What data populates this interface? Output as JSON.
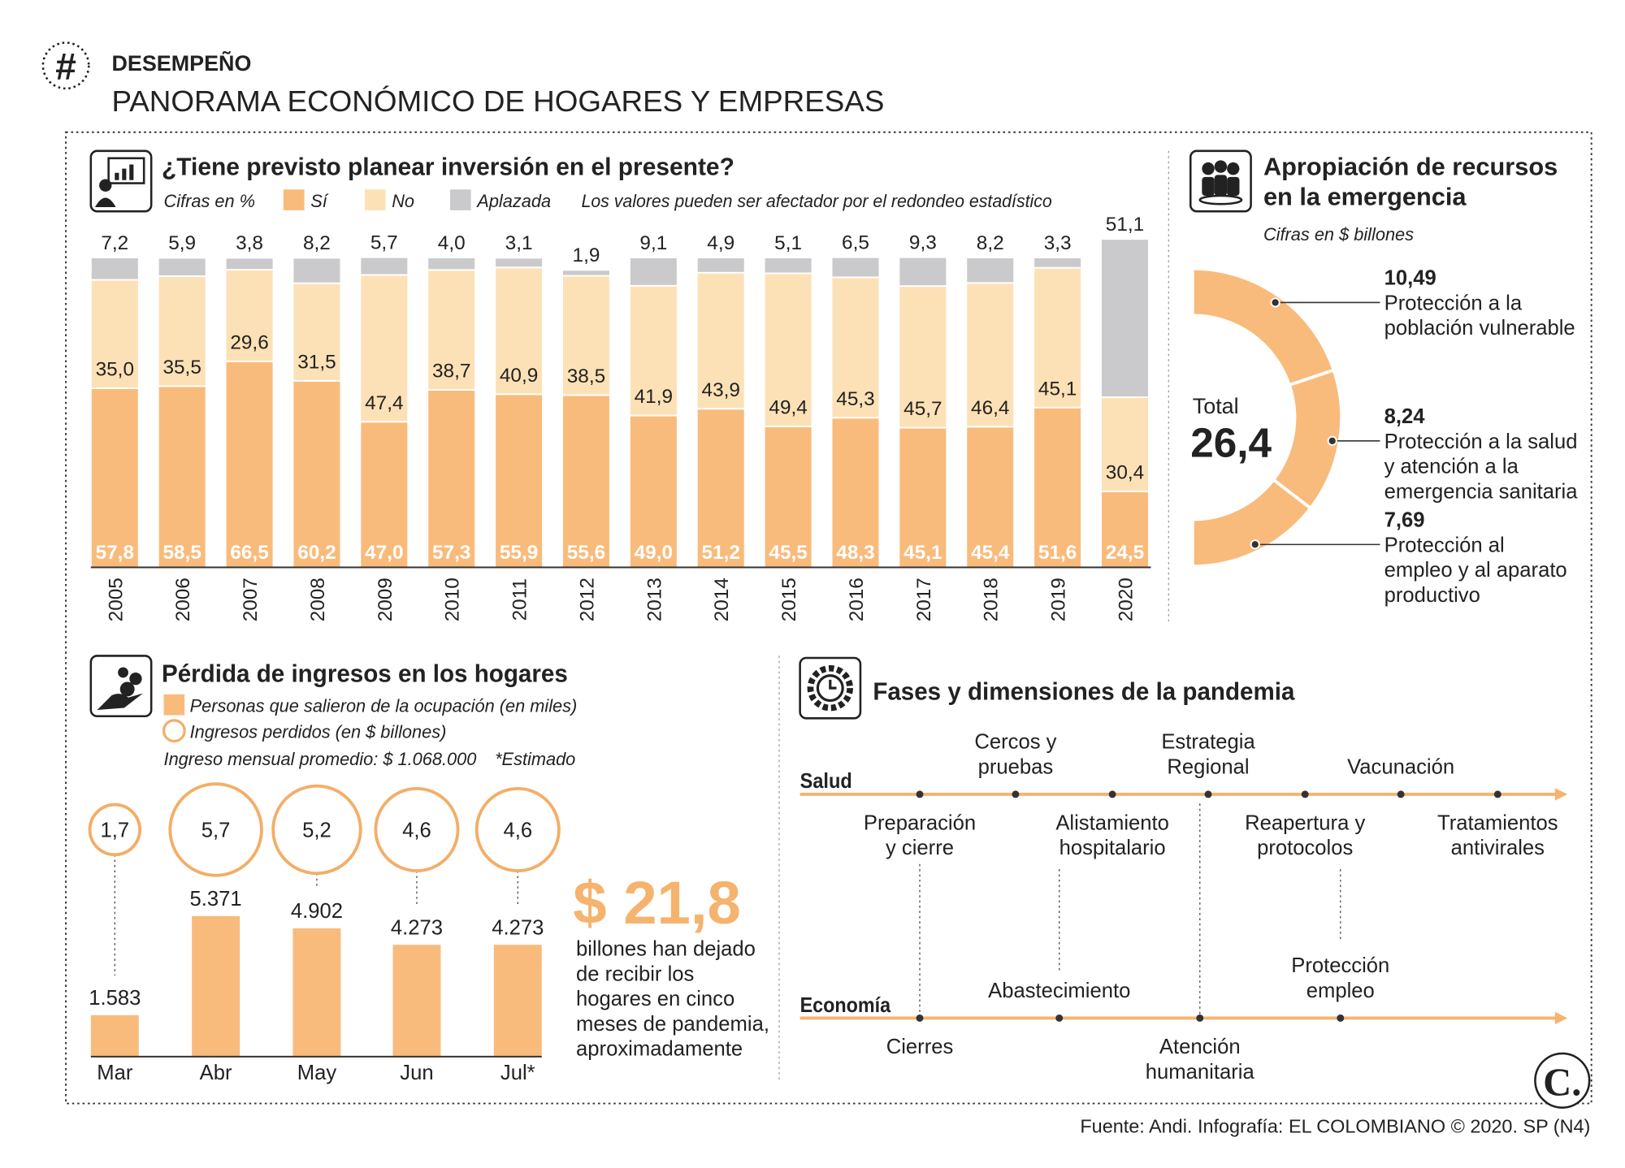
{
  "header": {
    "tag": "DESEMPEÑO",
    "title": "PANORAMA ECONÓMICO DE HOGARES Y EMPRESAS"
  },
  "chart_data": [
    {
      "type": "stacked_bar",
      "title": "¿Tiene previsto planear inversión en el presente?",
      "unit_note": "Cifras en %",
      "note": "Los valores pueden ser afectador por el redondeo estadístico",
      "categories": [
        "2005",
        "2006",
        "2007",
        "2008",
        "2009",
        "2010",
        "2011",
        "2012",
        "2013",
        "2014",
        "2015",
        "2016",
        "2017",
        "2018",
        "2019",
        "2020"
      ],
      "series": [
        {
          "name": "Sí",
          "color": "#f9bb7b",
          "values": [
            57.8,
            58.5,
            66.5,
            60.2,
            47.0,
            57.3,
            55.9,
            55.6,
            49.0,
            51.2,
            45.5,
            48.3,
            45.1,
            45.4,
            51.6,
            24.5
          ],
          "value_labels": [
            "57,8",
            "58,5",
            "66,5",
            "60,2",
            "47,0",
            "57,3",
            "55,9",
            "55,6",
            "49,0",
            "51,2",
            "45,5",
            "48,3",
            "45,1",
            "45,4",
            "51,6",
            "24,5"
          ]
        },
        {
          "name": "No",
          "color": "#fde1b6",
          "values": [
            35.0,
            35.5,
            29.6,
            31.5,
            47.4,
            38.7,
            40.9,
            38.5,
            41.9,
            43.9,
            49.4,
            45.3,
            45.7,
            46.4,
            45.1,
            30.4
          ],
          "value_labels": [
            "35,0",
            "35,5",
            "29,6",
            "31,5",
            "47,4",
            "38,7",
            "40,9",
            "38,5",
            "41,9",
            "43,9",
            "49,4",
            "45,3",
            "45,7",
            "46,4",
            "45,1",
            "30,4"
          ]
        },
        {
          "name": "Aplazada",
          "color": "#cacacc",
          "values": [
            7.2,
            5.9,
            3.8,
            8.2,
            5.7,
            4.0,
            3.1,
            1.9,
            9.1,
            4.9,
            5.1,
            6.5,
            9.3,
            8.2,
            3.3,
            51.1
          ],
          "value_labels": [
            "7,2",
            "5,9",
            "3,8",
            "8,2",
            "5,7",
            "4,0",
            "3,1",
            "1,9",
            "9,1",
            "4,9",
            "5,1",
            "6,5",
            "9,3",
            "8,2",
            "3,3",
            "51,1"
          ]
        }
      ]
    },
    {
      "type": "semi_donut",
      "title_lines": [
        "Apropiación de recursos",
        "en la emergencia"
      ],
      "subtitle": "Cifras en $ billones",
      "total_caption": "Total",
      "total": "26,4",
      "color": "#f9bb7b",
      "categories": [
        [
          "Protección a la",
          "población vulnerable"
        ],
        [
          "Protección a la salud",
          "y atención a la",
          "emergencia sanitaria"
        ],
        [
          "Protección al",
          "empleo y al aparato",
          "productivo"
        ]
      ],
      "values": [
        10.49,
        8.24,
        7.69
      ],
      "value_labels": [
        "10,49",
        "8,24",
        "7,69"
      ]
    },
    {
      "type": "bar_bubble",
      "title": "Pérdida de ingresos en los hogares",
      "note": "Ingreso mensual promedio: $ 1.068.000",
      "note2": "*Estimado",
      "categories": [
        "Mar",
        "Abr",
        "May",
        "Jun",
        "Jul*"
      ],
      "series": [
        {
          "name": "Personas que salieron de la ocupación (en miles)",
          "color": "#f9bb7b",
          "values": [
            1583,
            5371,
            4902,
            4273,
            4273
          ],
          "value_labels": [
            "1.583",
            "5.371",
            "4.902",
            "4.273",
            "4.273"
          ]
        },
        {
          "name": "Ingresos perdidos (en $ billones)",
          "color": "#f3ae68",
          "values": [
            1.7,
            5.7,
            5.2,
            4.6,
            4.6
          ],
          "value_labels": [
            "1,7",
            "5,7",
            "5,2",
            "4,6",
            "4,6"
          ]
        }
      ],
      "highlight": "$ 21,8",
      "highlight_text": [
        "billones han dejado",
        "de recibir los",
        "hogares en cinco",
        "meses de pandemia,",
        "aproximadamente"
      ]
    }
  ],
  "timeline": {
    "title": "Fases y dimensiones de la pandemia",
    "rows": [
      {
        "label": "Salud",
        "events": [
          [
            "Preparación",
            "y cierre"
          ],
          [
            "Cercos y",
            "pruebas"
          ],
          [
            "Alistamiento",
            "hospitalario"
          ],
          [
            "Estrategia",
            "Regional"
          ],
          [
            "Reapertura y",
            "protocolos"
          ],
          [
            "Vacunación"
          ],
          [
            "Tratamientos",
            "antivirales"
          ]
        ]
      },
      {
        "label": "Economía",
        "events": [
          [
            "Cierres"
          ],
          [
            "Abastecimiento"
          ],
          [
            "Atención",
            "humanitaria"
          ],
          [
            "Protección",
            "empleo"
          ]
        ]
      }
    ]
  },
  "footer": {
    "source": "Fuente: Andi. Infografía: EL COLOMBIANO © 2020. SP (N4)",
    "logo": "C."
  }
}
